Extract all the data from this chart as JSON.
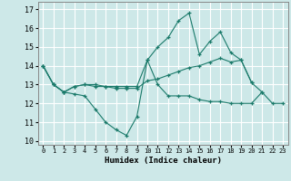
{
  "title": "",
  "xlabel": "Humidex (Indice chaleur)",
  "xlim": [
    -0.5,
    23.5
  ],
  "ylim": [
    9.8,
    17.4
  ],
  "xticks": [
    0,
    1,
    2,
    3,
    4,
    5,
    6,
    7,
    8,
    9,
    10,
    11,
    12,
    13,
    14,
    15,
    16,
    17,
    18,
    19,
    20,
    21,
    22,
    23
  ],
  "yticks": [
    10,
    11,
    12,
    13,
    14,
    15,
    16,
    17
  ],
  "background_color": "#cde8e8",
  "grid_color": "#ffffff",
  "line_color": "#1a7a6a",
  "line1_x": [
    0,
    1,
    2,
    3,
    4,
    5,
    6,
    7,
    8,
    9,
    10,
    11,
    12,
    13,
    14,
    15,
    16,
    17,
    18,
    19,
    20,
    21,
    22,
    23
  ],
  "line1_y": [
    14.0,
    13.0,
    12.6,
    12.5,
    12.4,
    11.7,
    11.0,
    10.6,
    10.3,
    11.3,
    14.3,
    13.0,
    12.4,
    12.4,
    12.4,
    12.2,
    12.1,
    12.1,
    12.0,
    12.0,
    12.0,
    12.6,
    12.0,
    12.0
  ],
  "line2_x": [
    0,
    1,
    2,
    3,
    4,
    5,
    6,
    7,
    8,
    9,
    10,
    11,
    12,
    13,
    14,
    15,
    16,
    17,
    18,
    19,
    20
  ],
  "line2_y": [
    14.0,
    13.0,
    12.6,
    12.9,
    13.0,
    12.9,
    12.9,
    12.8,
    12.8,
    12.8,
    13.2,
    13.3,
    13.5,
    13.7,
    13.9,
    14.0,
    14.2,
    14.4,
    14.2,
    14.3,
    13.1
  ],
  "line3_x": [
    0,
    1,
    2,
    3,
    4,
    5,
    6,
    7,
    8,
    9,
    10,
    11,
    12,
    13,
    14,
    15,
    16,
    17,
    18,
    19,
    20,
    21
  ],
  "line3_y": [
    14.0,
    13.0,
    12.6,
    12.9,
    13.0,
    13.0,
    12.9,
    12.9,
    12.9,
    12.9,
    14.3,
    15.0,
    15.5,
    16.4,
    16.8,
    14.6,
    15.3,
    15.8,
    14.7,
    14.3,
    13.1,
    12.6
  ]
}
